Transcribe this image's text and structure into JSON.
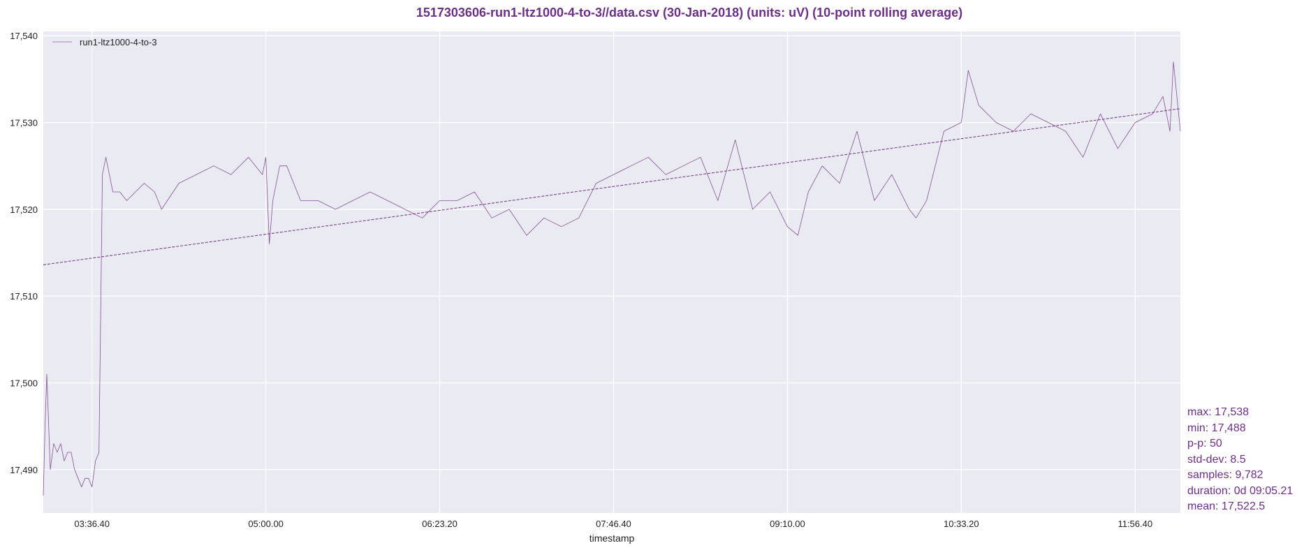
{
  "chart_data": {
    "type": "line",
    "title": "1517303606-run1-ltz1000-4-to-3//data.csv (30-Jan-2018) (units: uV) (10-point rolling average)",
    "xlabel": "timestamp",
    "ylabel": "",
    "x_ticks": [
      "03:36.40",
      "05:00.00",
      "06:23.20",
      "07:46.40",
      "09:10.00",
      "10:33.20",
      "11:56.40"
    ],
    "x_tick_seconds": [
      13000,
      18000,
      23000,
      28000,
      33000,
      38000,
      43000
    ],
    "xlim_seconds": [
      11600,
      44300
    ],
    "y_ticks": [
      "17,490",
      "17,500",
      "17,510",
      "17,520",
      "17,530",
      "17,540"
    ],
    "y_tick_values": [
      17490,
      17500,
      17510,
      17520,
      17530,
      17540
    ],
    "ylim": [
      17485,
      17540.5
    ],
    "grid": true,
    "legend": {
      "position": "top-left",
      "entries": [
        "run1-ltz1000-4-to-3"
      ]
    },
    "colors": {
      "series": "#7b3f8c",
      "title": "#6b2f86",
      "background": "#eaeaf2",
      "grid": "#ffffff"
    },
    "series": [
      {
        "name": "run1-ltz1000-4-to-3",
        "x_seconds": [
          11600,
          11650,
          11700,
          11800,
          11900,
          12000,
          12100,
          12200,
          12300,
          12400,
          12500,
          12600,
          12700,
          12800,
          12900,
          13000,
          13100,
          13200,
          13300,
          13400,
          13500,
          13600,
          13800,
          14000,
          14500,
          14800,
          15000,
          15500,
          16000,
          16500,
          17000,
          17500,
          17900,
          18000,
          18100,
          18200,
          18400,
          18600,
          19000,
          19500,
          20000,
          20500,
          21000,
          21500,
          22000,
          22500,
          23000,
          23500,
          24000,
          24500,
          25000,
          25500,
          26000,
          26500,
          27000,
          27500,
          28000,
          28500,
          29000,
          29500,
          30000,
          30500,
          31000,
          31500,
          32000,
          32500,
          33000,
          33300,
          33600,
          34000,
          34500,
          35000,
          35500,
          36000,
          36500,
          36700,
          37000,
          37500,
          38000,
          38200,
          38500,
          39000,
          39500,
          40000,
          40500,
          41000,
          41500,
          42000,
          42500,
          43000,
          43500,
          43800,
          44000,
          44100,
          44300
        ],
        "values": [
          17487,
          17495,
          17501,
          17490,
          17493,
          17492,
          17493,
          17491,
          17492,
          17492,
          17490,
          17489,
          17488,
          17489,
          17489,
          17488,
          17491,
          17492,
          17524,
          17526,
          17524,
          17522,
          17522,
          17521,
          17523,
          17522,
          17520,
          17523,
          17524,
          17525,
          17524,
          17526,
          17524,
          17526,
          17516,
          17521,
          17525,
          17525,
          17521,
          17521,
          17520,
          17521,
          17522,
          17521,
          17520,
          17519,
          17521,
          17521,
          17522,
          17519,
          17520,
          17517,
          17519,
          17518,
          17519,
          17523,
          17524,
          17525,
          17526,
          17524,
          17525,
          17526,
          17521,
          17528,
          17520,
          17522,
          17518,
          17517,
          17522,
          17525,
          17523,
          17529,
          17521,
          17524,
          17520,
          17519,
          17521,
          17529,
          17530,
          17536,
          17532,
          17530,
          17529,
          17531,
          17530,
          17529,
          17526,
          17531,
          17527,
          17530,
          17531,
          17533,
          17529,
          17537,
          17529
        ]
      },
      {
        "name": "",
        "style": "dashed-trend",
        "x_seconds": [
          11600,
          44300
        ],
        "values": [
          17513.6,
          17531.6
        ]
      }
    ]
  },
  "stats": {
    "max": "max: 17,538",
    "min": "min: 17,488",
    "pp": "p-p: 50",
    "stddev": "std-dev: 8.5",
    "samples": "samples: 9,782",
    "duration": "duration: 0d 09:05.21",
    "mean": "mean: 17,522.5"
  }
}
